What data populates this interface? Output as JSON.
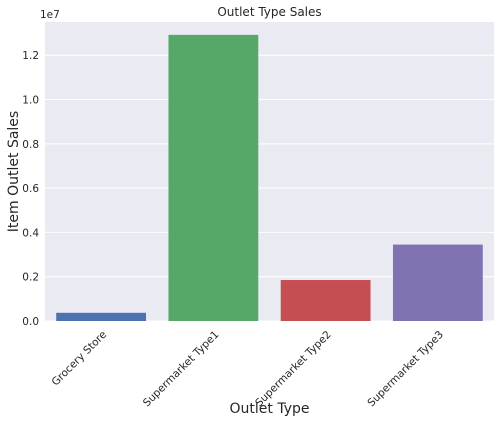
{
  "chart_data": {
    "type": "bar",
    "title": "Outlet Type Sales",
    "xlabel": "Outlet Type",
    "ylabel": "Item Outlet Sales",
    "y_offset_label": "1e7",
    "categories": [
      "Grocery Store",
      "Supermarket Type1",
      "Supermarket Type2",
      "Supermarket Type3"
    ],
    "values": [
      370000.0,
      12920000.0,
      1850000.0,
      3450000.0
    ],
    "colors": [
      "#4C72B0",
      "#55A868",
      "#C44E52",
      "#8172B2"
    ],
    "ylim": [
      0,
      13500000.0
    ],
    "yticks": [
      0,
      2000000.0,
      4000000.0,
      6000000.0,
      8000000.0,
      10000000.0,
      12000000.0
    ],
    "ytick_labels": [
      "0.0",
      "0.2",
      "0.4",
      "0.6",
      "0.8",
      "1.0",
      "1.2"
    ],
    "grid": true,
    "background": "#EAEAF2"
  }
}
